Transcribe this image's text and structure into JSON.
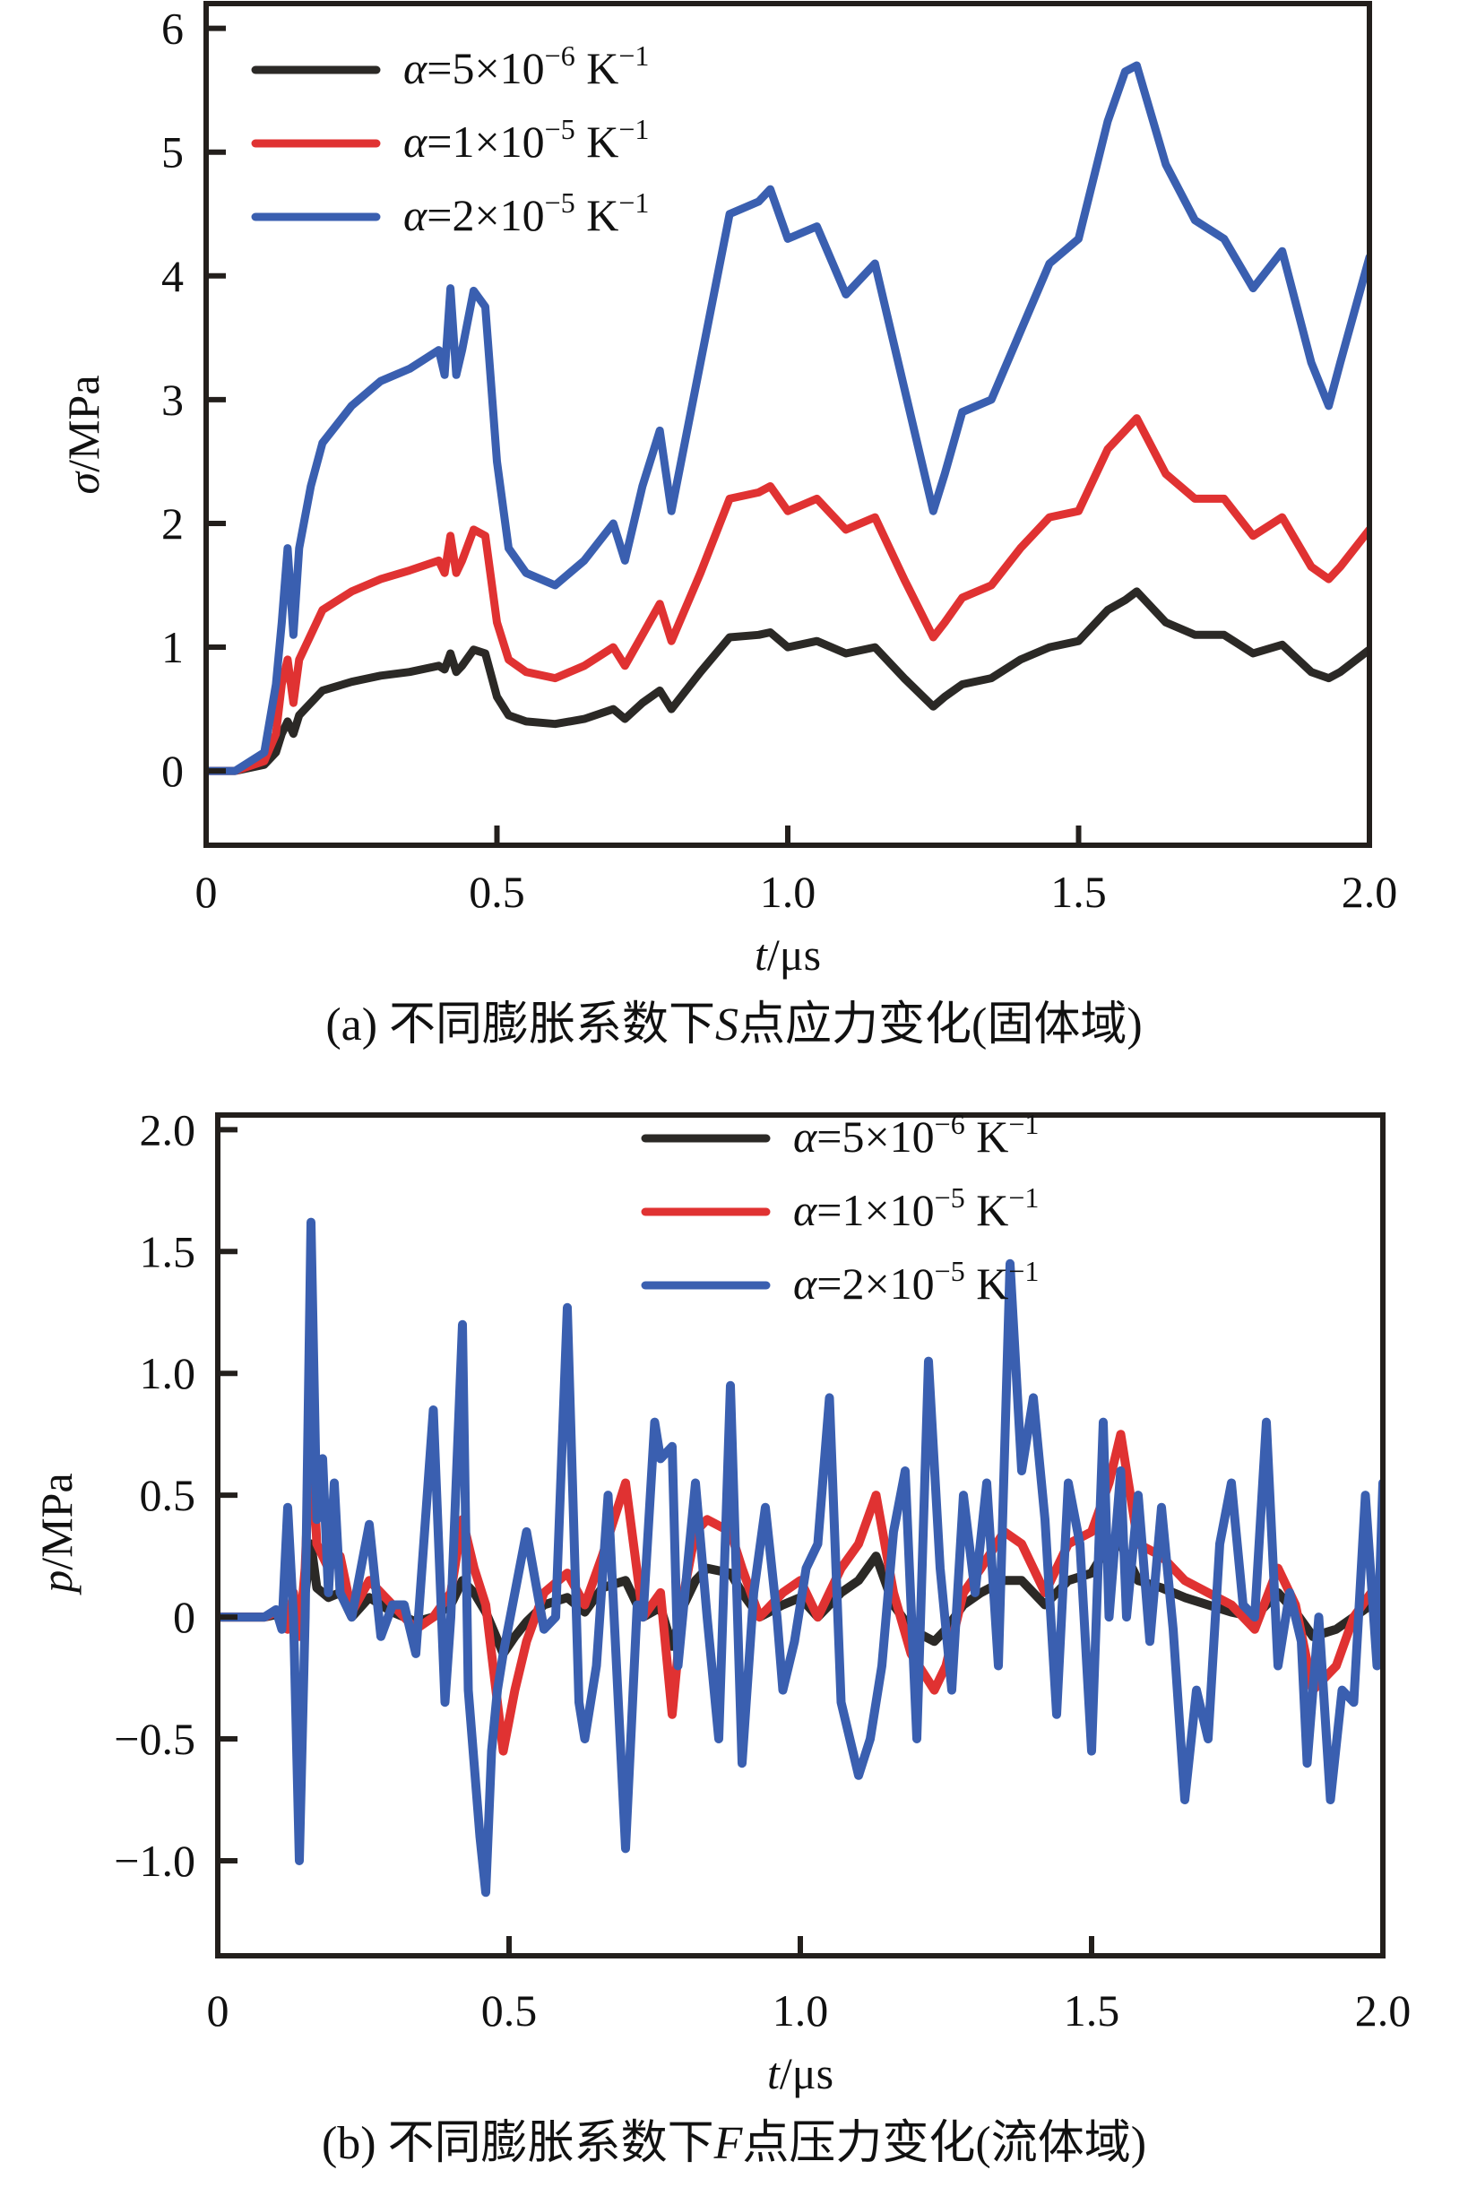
{
  "colors": {
    "series_black": "#2b2926",
    "series_red": "#e03232",
    "series_blue": "#3a5fb0",
    "axis": "#231f1c"
  },
  "chart_data": [
    {
      "type": "line",
      "panel": "a",
      "caption": "(a) 不同膨胀系数下S点应力变化(固体域)",
      "caption_parts": {
        "prefix": "(a) 不同膨胀系数下",
        "italic": "S",
        "suffix": "点应力变化(固体域)"
      },
      "xlabel": "t/μs",
      "xlabel_parts": {
        "italic": "t",
        "rest": "/μs"
      },
      "ylabel": "σ/MPa",
      "ylabel_parts": {
        "italic": "σ",
        "rest": "/MPa"
      },
      "xlim": [
        0,
        2.0
      ],
      "ylim": [
        -0.6,
        6.2
      ],
      "x_ticks": [
        "0",
        "0.5",
        "1.0",
        "1.5",
        "2.0"
      ],
      "x_tick_values": [
        0,
        0.5,
        1.0,
        1.5,
        2.0
      ],
      "y_ticks": [
        "0",
        "1",
        "2",
        "3",
        "4",
        "5",
        "6"
      ],
      "y_tick_values": [
        0,
        1,
        2,
        3,
        4,
        5,
        6
      ],
      "legend_position": "top-left",
      "series": [
        {
          "name": "α=5×10⁻⁶ K⁻¹",
          "legend_parts": {
            "coef": "=5×10",
            "exp": "−6",
            "unit": " K",
            "unit_exp": "−1"
          },
          "color_key": "series_black",
          "x": [
            0,
            0.05,
            0.1,
            0.12,
            0.13,
            0.14,
            0.15,
            0.16,
            0.18,
            0.2,
            0.25,
            0.3,
            0.35,
            0.4,
            0.41,
            0.42,
            0.43,
            0.44,
            0.46,
            0.48,
            0.5,
            0.52,
            0.55,
            0.6,
            0.65,
            0.7,
            0.72,
            0.75,
            0.78,
            0.8,
            0.85,
            0.9,
            0.95,
            0.97,
            1.0,
            1.05,
            1.1,
            1.15,
            1.2,
            1.25,
            1.27,
            1.3,
            1.35,
            1.4,
            1.45,
            1.5,
            1.55,
            1.58,
            1.6,
            1.65,
            1.7,
            1.75,
            1.8,
            1.85,
            1.9,
            1.93,
            1.95,
            2.0
          ],
          "values": [
            0,
            0,
            0.05,
            0.15,
            0.3,
            0.4,
            0.3,
            0.45,
            0.55,
            0.65,
            0.72,
            0.77,
            0.8,
            0.85,
            0.82,
            0.95,
            0.8,
            0.85,
            0.98,
            0.95,
            0.6,
            0.45,
            0.4,
            0.38,
            0.42,
            0.5,
            0.42,
            0.55,
            0.65,
            0.5,
            0.8,
            1.08,
            1.1,
            1.12,
            1.0,
            1.05,
            0.95,
            1.0,
            0.75,
            0.52,
            0.6,
            0.7,
            0.75,
            0.9,
            1.0,
            1.05,
            1.3,
            1.38,
            1.45,
            1.2,
            1.1,
            1.1,
            0.95,
            1.02,
            0.8,
            0.75,
            0.8,
            0.98
          ]
        },
        {
          "name": "α=1×10⁻⁵ K⁻¹",
          "legend_parts": {
            "coef": "=1×10",
            "exp": "−5",
            "unit": " K",
            "unit_exp": "−1"
          },
          "color_key": "series_red",
          "x": [
            0,
            0.05,
            0.1,
            0.12,
            0.13,
            0.14,
            0.15,
            0.16,
            0.18,
            0.2,
            0.25,
            0.3,
            0.35,
            0.4,
            0.41,
            0.42,
            0.43,
            0.44,
            0.46,
            0.48,
            0.5,
            0.52,
            0.55,
            0.6,
            0.65,
            0.7,
            0.72,
            0.75,
            0.78,
            0.8,
            0.85,
            0.9,
            0.95,
            0.97,
            1.0,
            1.05,
            1.1,
            1.15,
            1.2,
            1.25,
            1.27,
            1.3,
            1.35,
            1.4,
            1.45,
            1.5,
            1.55,
            1.58,
            1.6,
            1.65,
            1.7,
            1.75,
            1.8,
            1.85,
            1.9,
            1.93,
            1.95,
            2.0
          ],
          "values": [
            0,
            0,
            0.08,
            0.3,
            0.7,
            0.9,
            0.55,
            0.9,
            1.1,
            1.3,
            1.45,
            1.55,
            1.62,
            1.7,
            1.6,
            1.9,
            1.6,
            1.7,
            1.95,
            1.9,
            1.2,
            0.9,
            0.8,
            0.75,
            0.85,
            1.0,
            0.85,
            1.1,
            1.35,
            1.05,
            1.6,
            2.2,
            2.25,
            2.3,
            2.1,
            2.2,
            1.95,
            2.05,
            1.55,
            1.08,
            1.2,
            1.4,
            1.5,
            1.8,
            2.05,
            2.1,
            2.6,
            2.75,
            2.85,
            2.4,
            2.2,
            2.2,
            1.9,
            2.05,
            1.65,
            1.55,
            1.65,
            1.95
          ]
        },
        {
          "name": "α=2×10⁻⁵ K⁻¹",
          "legend_parts": {
            "coef": "=2×10",
            "exp": "−5",
            "unit": " K",
            "unit_exp": "−1"
          },
          "color_key": "series_blue",
          "x": [
            0,
            0.05,
            0.1,
            0.12,
            0.13,
            0.14,
            0.15,
            0.16,
            0.18,
            0.2,
            0.25,
            0.3,
            0.35,
            0.4,
            0.41,
            0.42,
            0.43,
            0.44,
            0.46,
            0.48,
            0.5,
            0.52,
            0.55,
            0.6,
            0.65,
            0.7,
            0.72,
            0.75,
            0.78,
            0.8,
            0.85,
            0.9,
            0.95,
            0.97,
            1.0,
            1.05,
            1.1,
            1.15,
            1.2,
            1.25,
            1.27,
            1.3,
            1.35,
            1.4,
            1.45,
            1.5,
            1.55,
            1.58,
            1.6,
            1.65,
            1.7,
            1.75,
            1.8,
            1.85,
            1.9,
            1.93,
            1.95,
            2.0
          ],
          "values": [
            0,
            0,
            0.15,
            0.7,
            1.2,
            1.8,
            1.1,
            1.8,
            2.3,
            2.65,
            2.95,
            3.15,
            3.25,
            3.4,
            3.2,
            3.9,
            3.2,
            3.4,
            3.88,
            3.75,
            2.5,
            1.8,
            1.6,
            1.5,
            1.7,
            2.0,
            1.7,
            2.3,
            2.75,
            2.1,
            3.3,
            4.5,
            4.6,
            4.7,
            4.3,
            4.4,
            3.85,
            4.1,
            3.1,
            2.1,
            2.4,
            2.9,
            3.0,
            3.55,
            4.1,
            4.3,
            5.25,
            5.65,
            5.7,
            4.9,
            4.45,
            4.3,
            3.9,
            4.2,
            3.3,
            2.95,
            3.3,
            4.15
          ]
        }
      ]
    },
    {
      "type": "line",
      "panel": "b",
      "caption": "(b) 不同膨胀系数下F点压力变化(流体域)",
      "caption_parts": {
        "prefix": "(b) 不同膨胀系数下",
        "italic": "F",
        "suffix": "点压力变化(流体域)"
      },
      "xlabel": "t/μs",
      "xlabel_parts": {
        "italic": "t",
        "rest": "/μs"
      },
      "ylabel": "p/MPa",
      "ylabel_parts": {
        "italic": "p",
        "rest": "/MPa"
      },
      "xlim": [
        0,
        2.0
      ],
      "ylim": [
        -1.39,
        2.06
      ],
      "x_ticks": [
        "0",
        "0.5",
        "1.0",
        "1.5",
        "2.0"
      ],
      "x_tick_values": [
        0,
        0.5,
        1.0,
        1.5,
        2.0
      ],
      "y_ticks": [
        "−1.0",
        "−0.5",
        "0",
        "0.5",
        "1.0",
        "1.5",
        "2.0"
      ],
      "y_tick_values": [
        -1.0,
        -0.5,
        0,
        0.5,
        1.0,
        1.5,
        2.0
      ],
      "legend_position": "top-center",
      "series": [
        {
          "name": "α=5×10⁻⁶ K⁻¹",
          "legend_parts": {
            "coef": "=5×10",
            "exp": "−6",
            "unit": " K",
            "unit_exp": "−1"
          },
          "color_key": "series_black",
          "x": [
            0,
            0.08,
            0.1,
            0.12,
            0.13,
            0.14,
            0.15,
            0.16,
            0.17,
            0.19,
            0.21,
            0.23,
            0.26,
            0.3,
            0.34,
            0.37,
            0.4,
            0.42,
            0.44,
            0.46,
            0.49,
            0.51,
            0.53,
            0.56,
            0.6,
            0.63,
            0.66,
            0.7,
            0.73,
            0.76,
            0.78,
            0.8,
            0.82,
            0.84,
            0.88,
            0.9,
            0.93,
            0.97,
            1.0,
            1.03,
            1.07,
            1.1,
            1.13,
            1.16,
            1.19,
            1.23,
            1.25,
            1.28,
            1.31,
            1.35,
            1.38,
            1.42,
            1.46,
            1.5,
            1.53,
            1.55,
            1.58,
            1.62,
            1.66,
            1.7,
            1.74,
            1.78,
            1.82,
            1.85,
            1.88,
            1.92,
            1.95,
            1.98,
            2.0
          ],
          "values": [
            0,
            0,
            0.01,
            -0.02,
            0.05,
            -0.02,
            0.1,
            0.3,
            0.12,
            0.08,
            0.1,
            0.0,
            0.08,
            0.02,
            -0.02,
            0.0,
            0.05,
            0.15,
            0.1,
            0.02,
            -0.15,
            -0.08,
            -0.02,
            0.05,
            0.08,
            0.02,
            0.12,
            0.15,
            0.0,
            0.04,
            -0.12,
            0.05,
            0.15,
            0.2,
            0.18,
            0.1,
            0.0,
            0.05,
            0.08,
            0.0,
            0.1,
            0.15,
            0.25,
            0.05,
            -0.05,
            -0.1,
            -0.05,
            0.05,
            0.1,
            0.15,
            0.15,
            0.05,
            0.15,
            0.18,
            0.3,
            0.3,
            0.15,
            0.12,
            0.08,
            0.05,
            0.02,
            0.0,
            0.1,
            0.02,
            -0.08,
            -0.05,
            0.0,
            0.05,
            0.05
          ]
        },
        {
          "name": "α=1×10⁻⁵ K⁻¹",
          "legend_parts": {
            "coef": "=1×10",
            "exp": "−5",
            "unit": " K",
            "unit_exp": "−1"
          },
          "color_key": "series_red",
          "x": [
            0,
            0.08,
            0.1,
            0.12,
            0.13,
            0.14,
            0.15,
            0.16,
            0.17,
            0.19,
            0.21,
            0.23,
            0.26,
            0.3,
            0.34,
            0.37,
            0.4,
            0.42,
            0.44,
            0.46,
            0.49,
            0.51,
            0.53,
            0.56,
            0.6,
            0.63,
            0.66,
            0.7,
            0.73,
            0.76,
            0.78,
            0.8,
            0.82,
            0.84,
            0.88,
            0.9,
            0.93,
            0.97,
            1.0,
            1.03,
            1.07,
            1.1,
            1.13,
            1.16,
            1.19,
            1.23,
            1.25,
            1.28,
            1.31,
            1.35,
            1.38,
            1.42,
            1.46,
            1.5,
            1.53,
            1.55,
            1.58,
            1.62,
            1.66,
            1.7,
            1.74,
            1.78,
            1.82,
            1.85,
            1.88,
            1.92,
            1.95,
            1.98,
            2.0
          ],
          "values": [
            0,
            0,
            0.02,
            -0.05,
            0.1,
            -0.08,
            0.2,
            0.8,
            0.3,
            0.2,
            0.25,
            0.02,
            0.15,
            0.05,
            -0.05,
            0.0,
            0.1,
            0.4,
            0.2,
            0.05,
            -0.55,
            -0.3,
            -0.1,
            0.1,
            0.18,
            0.05,
            0.25,
            0.55,
            0.0,
            0.1,
            -0.4,
            0.1,
            0.35,
            0.4,
            0.35,
            0.2,
            0.0,
            0.1,
            0.15,
            0.0,
            0.2,
            0.3,
            0.5,
            0.1,
            -0.15,
            -0.3,
            -0.2,
            0.1,
            0.2,
            0.35,
            0.3,
            0.1,
            0.3,
            0.35,
            0.55,
            0.75,
            0.3,
            0.25,
            0.15,
            0.1,
            0.05,
            -0.05,
            0.2,
            0.05,
            -0.3,
            -0.2,
            0.0,
            0.1,
            0.1
          ]
        },
        {
          "name": "α=2×10⁻⁵ K⁻¹",
          "legend_parts": {
            "coef": "=2×10",
            "exp": "−5",
            "unit": " K",
            "unit_exp": "−1"
          },
          "color_key": "series_blue",
          "x": [
            0,
            0.08,
            0.1,
            0.11,
            0.12,
            0.13,
            0.14,
            0.15,
            0.16,
            0.17,
            0.18,
            0.19,
            0.2,
            0.21,
            0.23,
            0.26,
            0.28,
            0.3,
            0.32,
            0.34,
            0.37,
            0.39,
            0.4,
            0.42,
            0.43,
            0.44,
            0.45,
            0.46,
            0.47,
            0.48,
            0.49,
            0.51,
            0.53,
            0.56,
            0.58,
            0.6,
            0.62,
            0.63,
            0.65,
            0.67,
            0.7,
            0.72,
            0.73,
            0.75,
            0.76,
            0.78,
            0.79,
            0.8,
            0.82,
            0.84,
            0.86,
            0.88,
            0.9,
            0.92,
            0.94,
            0.96,
            0.97,
            0.99,
            1.01,
            1.03,
            1.05,
            1.07,
            1.1,
            1.12,
            1.14,
            1.16,
            1.18,
            1.2,
            1.22,
            1.24,
            1.26,
            1.28,
            1.3,
            1.32,
            1.34,
            1.36,
            1.38,
            1.4,
            1.42,
            1.44,
            1.46,
            1.48,
            1.5,
            1.52,
            1.53,
            1.55,
            1.56,
            1.58,
            1.6,
            1.62,
            1.64,
            1.66,
            1.68,
            1.7,
            1.72,
            1.74,
            1.76,
            1.78,
            1.8,
            1.82,
            1.84,
            1.86,
            1.87,
            1.89,
            1.91,
            1.93,
            1.95,
            1.97,
            1.99,
            2.0
          ],
          "values": [
            0,
            0,
            0.03,
            -0.05,
            0.45,
            0.0,
            -1.0,
            0.0,
            1.62,
            0.4,
            0.65,
            0.1,
            0.55,
            0.1,
            0.0,
            0.38,
            -0.08,
            0.05,
            0.05,
            -0.15,
            0.85,
            -0.35,
            0.0,
            1.2,
            -0.3,
            -0.6,
            -0.9,
            -1.13,
            -0.55,
            -0.3,
            -0.15,
            0.1,
            0.35,
            -0.05,
            0.0,
            1.27,
            -0.35,
            -0.5,
            -0.2,
            0.5,
            -0.95,
            0.05,
            0.0,
            0.8,
            0.65,
            0.7,
            -0.2,
            0.05,
            0.55,
            0.0,
            -0.5,
            0.95,
            -0.6,
            0.1,
            0.45,
            0.0,
            -0.3,
            -0.1,
            0.2,
            0.3,
            0.9,
            -0.35,
            -0.65,
            -0.5,
            -0.2,
            0.35,
            0.6,
            -0.5,
            1.05,
            0.2,
            -0.3,
            0.5,
            0.1,
            0.55,
            -0.2,
            1.45,
            0.6,
            0.9,
            0.4,
            -0.4,
            0.55,
            0.3,
            -0.55,
            0.8,
            0.0,
            0.6,
            0.0,
            0.5,
            -0.1,
            0.45,
            -0.05,
            -0.75,
            -0.3,
            -0.5,
            0.3,
            0.55,
            0.05,
            0.0,
            0.8,
            -0.2,
            0.1,
            -0.1,
            -0.6,
            0.0,
            -0.75,
            -0.3,
            -0.35,
            0.5,
            -0.2,
            0.55
          ]
        }
      ]
    }
  ]
}
